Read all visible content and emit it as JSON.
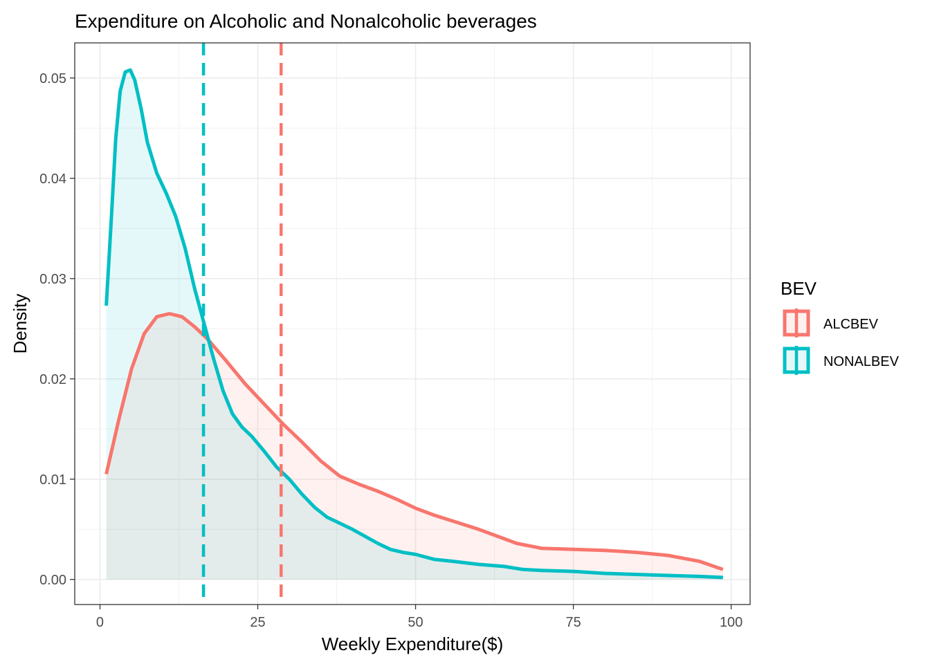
{
  "chart_data": {
    "type": "area",
    "title": "Expenditure on Alcoholic and Nonalcoholic beverages",
    "xlabel": "Weekly Expenditure($)",
    "ylabel": "Density",
    "xlim": [
      -4,
      103
    ],
    "ylim": [
      -0.0025,
      0.0535
    ],
    "x_ticks": [
      0,
      25,
      50,
      75,
      100
    ],
    "y_ticks": [
      0.0,
      0.01,
      0.02,
      0.03,
      0.04,
      0.05
    ],
    "x_tick_labels": [
      "0",
      "25",
      "50",
      "75",
      "100"
    ],
    "y_tick_labels": [
      "0.00",
      "0.01",
      "0.02",
      "0.03",
      "0.04",
      "0.05"
    ],
    "grid": true,
    "legend": {
      "title": "BEV",
      "position": "right"
    },
    "series": [
      {
        "name": "ALCBEV",
        "color": "#F8766D",
        "fill": "#FFF0F0",
        "mean_line": 28.7,
        "x": [
          1,
          3,
          5,
          7,
          9,
          11,
          13,
          15,
          17,
          20,
          23,
          26,
          29,
          32,
          35,
          38,
          41,
          44,
          47,
          50,
          53,
          56,
          60,
          63,
          66,
          70,
          75,
          80,
          85,
          90,
          95,
          98.7
        ],
        "y": [
          0.0105,
          0.016,
          0.021,
          0.0245,
          0.0262,
          0.0265,
          0.0262,
          0.0252,
          0.024,
          0.0218,
          0.0195,
          0.0175,
          0.0155,
          0.0137,
          0.0118,
          0.0103,
          0.0095,
          0.0088,
          0.008,
          0.0071,
          0.0064,
          0.0058,
          0.005,
          0.0043,
          0.0036,
          0.0031,
          0.003,
          0.0029,
          0.0027,
          0.0024,
          0.0018,
          0.001
        ]
      },
      {
        "name": "NONALBEV",
        "color": "#00BFC4",
        "fill": "#E6F7F8",
        "mean_line": 16.4,
        "x": [
          1,
          1.8,
          2.5,
          3.2,
          4,
          4.8,
          5.5,
          6.5,
          7.5,
          9,
          10.5,
          12,
          13.5,
          15,
          16.5,
          18,
          19.5,
          21,
          22.5,
          24,
          26,
          28,
          30,
          32,
          34,
          36,
          38,
          40,
          42,
          44,
          46,
          48,
          50,
          53,
          56,
          60,
          64,
          67,
          70,
          75,
          80,
          85,
          90,
          95,
          98.7
        ],
        "y": [
          0.0273,
          0.036,
          0.044,
          0.0487,
          0.0506,
          0.0508,
          0.0498,
          0.047,
          0.0436,
          0.0405,
          0.0385,
          0.0362,
          0.033,
          0.029,
          0.0255,
          0.022,
          0.0188,
          0.0165,
          0.0152,
          0.0143,
          0.0128,
          0.0112,
          0.01,
          0.0085,
          0.0072,
          0.0062,
          0.0056,
          0.005,
          0.0043,
          0.0036,
          0.003,
          0.0027,
          0.0025,
          0.002,
          0.0018,
          0.0015,
          0.0013,
          0.001,
          0.0009,
          0.0008,
          0.0006,
          0.0005,
          0.0004,
          0.0003,
          0.0002
        ]
      }
    ]
  }
}
